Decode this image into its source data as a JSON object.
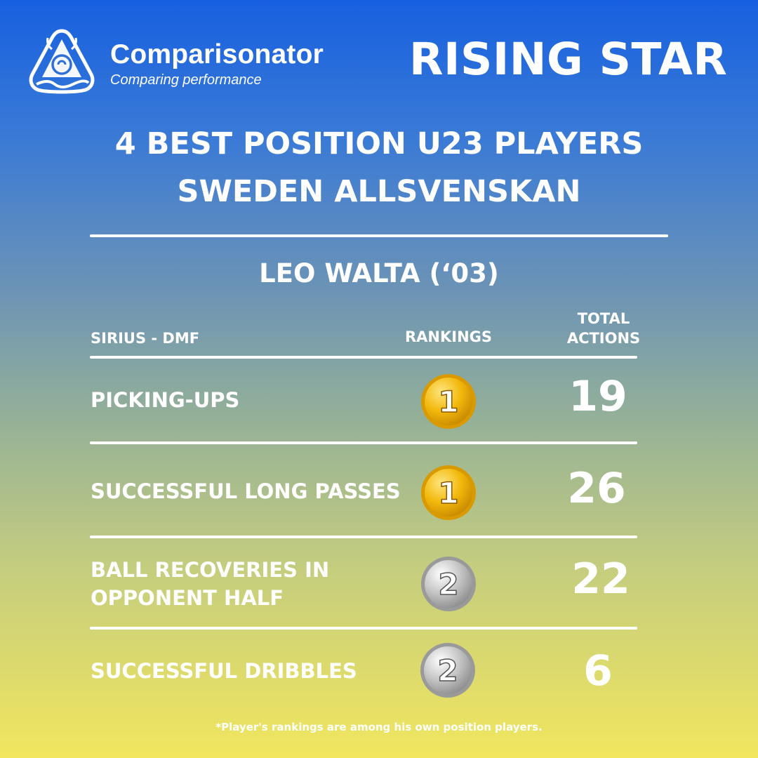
{
  "brand": {
    "name": "Comparisonator",
    "tagline": "Comparing performance"
  },
  "badge": "RISING STAR",
  "heading": {
    "line1": "4 BEST POSITION U23 PLAYERS",
    "line2": "SWEDEN ALLSVENSKAN"
  },
  "player": {
    "name_line": "LEO WALTA  (‘03)"
  },
  "table": {
    "club_position": "SIRIUS - DMF",
    "rankings_header": "RANKINGS",
    "total_header_line1": "TOTAL",
    "total_header_line2": "ACTIONS",
    "rows": [
      {
        "metric": "PICKING-UPS",
        "rank": "1",
        "medal": "gold",
        "total": "19"
      },
      {
        "metric": "SUCCESSFUL LONG PASSES",
        "rank": "1",
        "medal": "gold",
        "total": "26"
      },
      {
        "metric_line1": "BALL RECOVERIES IN",
        "metric_line2": "OPPONENT HALF",
        "rank": "2",
        "medal": "silver",
        "total": "22"
      },
      {
        "metric": "SUCCESSFUL DRIBBLES",
        "rank": "2",
        "medal": "silver",
        "total": "6"
      }
    ]
  },
  "footnote": "*Player's rankings are among his own position players.",
  "colors": {
    "gradient_top": "#1760e0",
    "gradient_bottom": "#f1e65e",
    "gold": "#f2b90c",
    "silver": "#b9b9b9"
  },
  "icons": {
    "logo": "comparisonator-triangle-logo",
    "gold_medal": "gold-medal-icon",
    "silver_medal": "silver-medal-icon"
  }
}
